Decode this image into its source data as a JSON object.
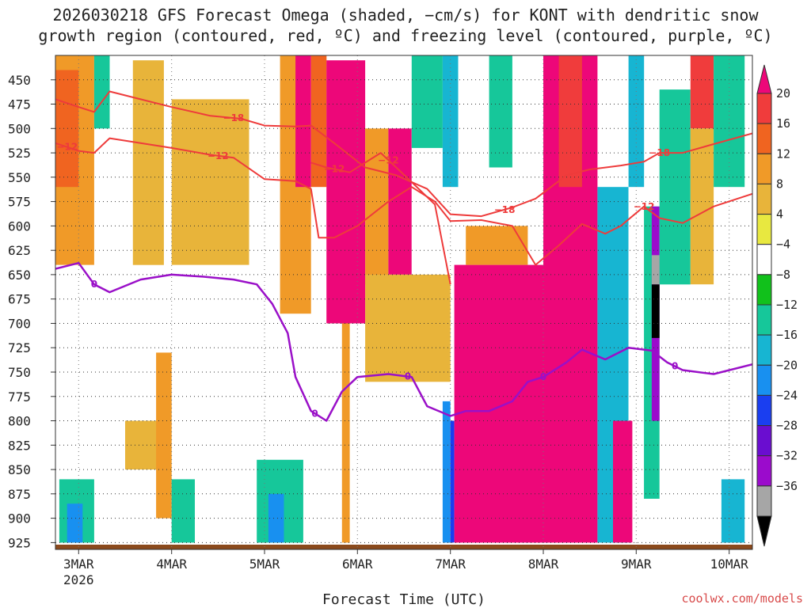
{
  "chart_data": {
    "type": "heatmap",
    "title_line1": "2026030218 GFS Forecast Omega (shaded, −cm/s) for KONT with dendritic snow",
    "title_line2": "growth region (contoured, red, ºC) and freezing level (contoured, purple, ºC)",
    "xlabel": "Forecast Time (UTC)",
    "credit": "coolwx.com/models",
    "x_ticks": [
      {
        "label": "3MAR",
        "sub": "2026",
        "hour": 0
      },
      {
        "label": "4MAR",
        "hour": 24
      },
      {
        "label": "5MAR",
        "hour": 48
      },
      {
        "label": "6MAR",
        "hour": 72
      },
      {
        "label": "7MAR",
        "hour": 96
      },
      {
        "label": "8MAR",
        "hour": 120
      },
      {
        "label": "9MAR",
        "hour": 144
      },
      {
        "label": "10MAR",
        "hour": 168
      }
    ],
    "x_range_hours": [
      -6,
      174
    ],
    "y_ticks": [
      450,
      475,
      500,
      525,
      550,
      575,
      600,
      625,
      650,
      675,
      700,
      725,
      750,
      775,
      800,
      825,
      850,
      875,
      900,
      925
    ],
    "y_range_hPa": [
      425,
      932
    ],
    "colorbar": {
      "levels": [
        "20",
        "16",
        "12",
        "8",
        "4",
        "−4",
        "−8",
        "−12",
        "−16",
        "−20",
        "−24",
        "−28",
        "−32",
        "−36"
      ],
      "colors": [
        "#ed0779",
        "#f03c3c",
        "#f06420",
        "#f09a28",
        "#e8b43a",
        "#e8e840",
        "#ffffff",
        "#11c11b",
        "#16c79a",
        "#17b5d2",
        "#1890f0",
        "#1a3ef0",
        "#6a0dd0",
        "#9b0bcc",
        "#a6a6a6",
        "#000000"
      ]
    },
    "omega_regions": [
      {
        "h0": -6,
        "h1": 4,
        "p0": 425,
        "p1": 640,
        "value": 8
      },
      {
        "h0": -6,
        "h1": 0,
        "p0": 440,
        "p1": 560,
        "value": 14
      },
      {
        "h0": 4,
        "h1": 8,
        "p0": 425,
        "p1": 500,
        "value": -8
      },
      {
        "h0": 14,
        "h1": 22,
        "p0": 430,
        "p1": 640,
        "value": 6
      },
      {
        "h0": 24,
        "h1": 44,
        "p0": 470,
        "p1": 640,
        "value": 5
      },
      {
        "h0": 12,
        "h1": 22,
        "p0": 800,
        "p1": 850,
        "value": 5
      },
      {
        "h0": 20,
        "h1": 24,
        "p0": 730,
        "p1": 900,
        "value": 8
      },
      {
        "h0": 24,
        "h1": 30,
        "p0": 860,
        "p1": 925,
        "value": -8
      },
      {
        "h0": -5,
        "h1": 4,
        "p0": 860,
        "p1": 925,
        "value": -10
      },
      {
        "h0": -3,
        "h1": 1,
        "p0": 885,
        "p1": 925,
        "value": -16
      },
      {
        "h0": 46,
        "h1": 58,
        "p0": 840,
        "p1": 925,
        "value": -10
      },
      {
        "h0": 49,
        "h1": 53,
        "p0": 875,
        "p1": 925,
        "value": -16
      },
      {
        "h0": 52,
        "h1": 60,
        "p0": 425,
        "p1": 690,
        "value": 10
      },
      {
        "h0": 56,
        "h1": 60,
        "p0": 425,
        "p1": 560,
        "value": 20
      },
      {
        "h0": 60,
        "h1": 64,
        "p0": 425,
        "p1": 560,
        "value": 14
      },
      {
        "h0": 64,
        "h1": 74,
        "p0": 430,
        "p1": 700,
        "value": 20
      },
      {
        "h0": 68,
        "h1": 70,
        "p0": 700,
        "p1": 925,
        "value": 8
      },
      {
        "h0": 74,
        "h1": 80,
        "p0": 500,
        "p1": 660,
        "value": 10
      },
      {
        "h0": 80,
        "h1": 86,
        "p0": 500,
        "p1": 650,
        "value": 20
      },
      {
        "h0": 74,
        "h1": 96,
        "p0": 650,
        "p1": 760,
        "value": 6
      },
      {
        "h0": 86,
        "h1": 94,
        "p0": 425,
        "p1": 520,
        "value": -10
      },
      {
        "h0": 94,
        "h1": 98,
        "p0": 425,
        "p1": 560,
        "value": -12
      },
      {
        "h0": 94,
        "h1": 96,
        "p0": 780,
        "p1": 925,
        "value": -16
      },
      {
        "h0": 96,
        "h1": 97,
        "p0": 800,
        "p1": 925,
        "value": -22
      },
      {
        "h0": 97,
        "h1": 120,
        "p0": 640,
        "p1": 925,
        "value": 20
      },
      {
        "h0": 100,
        "h1": 116,
        "p0": 600,
        "p1": 640,
        "value": 10
      },
      {
        "h0": 106,
        "h1": 112,
        "p0": 425,
        "p1": 540,
        "value": -8
      },
      {
        "h0": 120,
        "h1": 134,
        "p0": 425,
        "p1": 925,
        "value": 20
      },
      {
        "h0": 124,
        "h1": 130,
        "p0": 425,
        "p1": 560,
        "value": 16
      },
      {
        "h0": 134,
        "h1": 142,
        "p0": 560,
        "p1": 925,
        "value": -12
      },
      {
        "h0": 138,
        "h1": 143,
        "p0": 800,
        "p1": 925,
        "value": 20
      },
      {
        "h0": 142,
        "h1": 146,
        "p0": 425,
        "p1": 560,
        "value": -12
      },
      {
        "h0": 146,
        "h1": 150,
        "p0": 580,
        "p1": 880,
        "value": -8
      },
      {
        "h0": 148,
        "h1": 150,
        "p0": 580,
        "p1": 800,
        "value": -28
      },
      {
        "h0": 148,
        "h1": 150,
        "p0": 660,
        "p1": 715,
        "value": -40
      },
      {
        "h0": 148,
        "h1": 150,
        "p0": 630,
        "p1": 660,
        "value": -32
      },
      {
        "h0": 150,
        "h1": 158,
        "p0": 460,
        "p1": 660,
        "value": -8
      },
      {
        "h0": 158,
        "h1": 164,
        "p0": 425,
        "p1": 500,
        "value": 16
      },
      {
        "h0": 158,
        "h1": 164,
        "p0": 500,
        "p1": 660,
        "value": 6
      },
      {
        "h0": 164,
        "h1": 172,
        "p0": 425,
        "p1": 560,
        "value": -10
      },
      {
        "h0": 166,
        "h1": 172,
        "p0": 860,
        "p1": 925,
        "value": -12
      }
    ],
    "contours_dgz": [
      {
        "label": "−18",
        "label_at_hour": 40,
        "points": [
          [
            -6,
            470
          ],
          [
            0,
            478
          ],
          [
            4,
            483
          ],
          [
            8,
            462
          ],
          [
            16,
            470
          ],
          [
            24,
            478
          ],
          [
            34,
            487
          ],
          [
            42,
            490
          ],
          [
            48,
            497
          ],
          [
            56,
            498
          ],
          [
            60,
            497
          ],
          [
            66,
            515
          ],
          [
            74,
            540
          ],
          [
            82,
            548
          ],
          [
            90,
            562
          ],
          [
            96,
            588
          ],
          [
            104,
            590
          ],
          [
            112,
            581
          ],
          [
            118,
            572
          ],
          [
            126,
            548
          ],
          [
            132,
            542
          ],
          [
            140,
            538
          ],
          [
            146,
            534
          ],
          [
            150,
            525
          ],
          [
            156,
            525
          ],
          [
            164,
            516
          ],
          [
            174,
            505
          ]
        ]
      },
      {
        "label": "−12",
        "label_at_hour": -3,
        "points": [
          [
            -6,
            515
          ],
          [
            0,
            523
          ],
          [
            4,
            525
          ],
          [
            8,
            510
          ],
          [
            16,
            515
          ],
          [
            24,
            520
          ],
          [
            34,
            527
          ],
          [
            40,
            530
          ],
          [
            48,
            552
          ],
          [
            56,
            554
          ],
          [
            60,
            562
          ],
          [
            62,
            612
          ],
          [
            66,
            612
          ],
          [
            72,
            600
          ],
          [
            80,
            575
          ],
          [
            86,
            560
          ],
          [
            92,
            575
          ],
          [
            96,
            595
          ],
          [
            104,
            594
          ],
          [
            112,
            600
          ],
          [
            118,
            640
          ],
          [
            124,
            620
          ],
          [
            130,
            598
          ],
          [
            136,
            608
          ],
          [
            140,
            600
          ],
          [
            146,
            580
          ],
          [
            150,
            592
          ],
          [
            156,
            597
          ],
          [
            164,
            580
          ],
          [
            174,
            567
          ]
        ]
      },
      {
        "label": "−12",
        "label_at_hour": 66,
        "points": [
          [
            60,
            535
          ],
          [
            64,
            540
          ],
          [
            70,
            545
          ],
          [
            78,
            525
          ],
          [
            86,
            555
          ],
          [
            92,
            578
          ],
          [
            96,
            660
          ]
        ]
      }
    ],
    "contour_freezing": {
      "label": "0",
      "points": [
        [
          -6,
          644
        ],
        [
          0,
          638
        ],
        [
          4,
          660
        ],
        [
          8,
          668
        ],
        [
          16,
          655
        ],
        [
          24,
          650
        ],
        [
          32,
          652
        ],
        [
          40,
          655
        ],
        [
          46,
          660
        ],
        [
          50,
          680
        ],
        [
          54,
          710
        ],
        [
          56,
          755
        ],
        [
          60,
          790
        ],
        [
          64,
          800
        ],
        [
          68,
          770
        ],
        [
          72,
          755
        ],
        [
          80,
          752
        ],
        [
          86,
          755
        ],
        [
          90,
          785
        ],
        [
          96,
          795
        ],
        [
          100,
          790
        ],
        [
          106,
          790
        ],
        [
          112,
          780
        ],
        [
          116,
          760
        ],
        [
          120,
          755
        ],
        [
          126,
          740
        ],
        [
          130,
          727
        ],
        [
          136,
          737
        ],
        [
          142,
          725
        ],
        [
          148,
          728
        ],
        [
          152,
          740
        ],
        [
          156,
          748
        ],
        [
          164,
          752
        ],
        [
          174,
          742
        ]
      ]
    }
  }
}
